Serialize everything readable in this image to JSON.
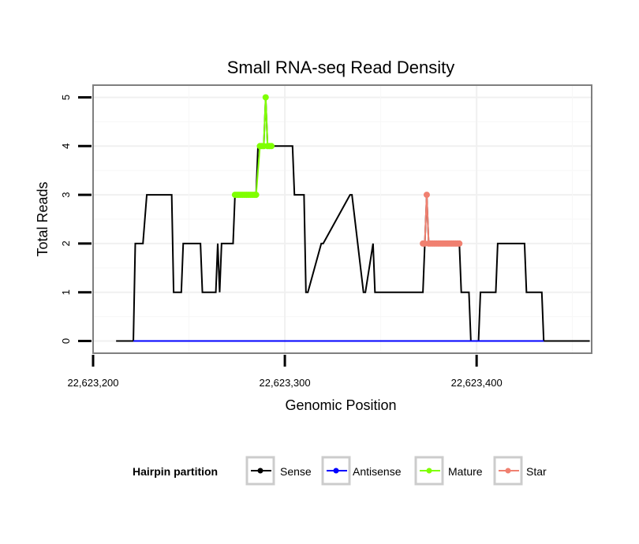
{
  "chart_data": {
    "type": "line",
    "title": "Small RNA-seq Read Density",
    "xlabel": "Genomic Position",
    "ylabel": "Total Reads",
    "xlim": [
      22623200,
      22623460
    ],
    "ylim": [
      -0.25,
      5.25
    ],
    "x_ticks": [
      22623200,
      22623300,
      22623400
    ],
    "x_tick_labels": [
      "22,623,200",
      "22,623,300",
      "22,623,400"
    ],
    "y_ticks": [
      0,
      1,
      2,
      3,
      4,
      5
    ],
    "y_tick_labels": [
      "0",
      "1",
      "2",
      "3",
      "4",
      "5"
    ],
    "grid": true,
    "legend": {
      "title": "Hairpin partition",
      "position": "bottom",
      "entries": [
        {
          "label": "Sense",
          "color": "#000000"
        },
        {
          "label": "Antisense",
          "color": "#0000ff"
        },
        {
          "label": "Mature",
          "color": "#7fff00"
        },
        {
          "label": "Star",
          "color": "#f08070"
        }
      ]
    },
    "series": [
      {
        "name": "Sense",
        "color": "#000000",
        "x": [
          22623212,
          22623221,
          22623222,
          22623226,
          22623228,
          22623241,
          22623242,
          22623246,
          22623247,
          22623256,
          22623257,
          22623264,
          22623265,
          22623266,
          22623267,
          22623273,
          22623274,
          22623285,
          22623286,
          22623289,
          22623290,
          22623291,
          22623293,
          22623294,
          22623304,
          22623305,
          22623310,
          22623311,
          22623312,
          22623319,
          22623320,
          22623334,
          22623335,
          22623341,
          22623342,
          22623346,
          22623347,
          22623351,
          22623352,
          22623372,
          22623373,
          22623374,
          22623375,
          22623391,
          22623392,
          22623396,
          22623397,
          22623401,
          22623402,
          22623405,
          22623406,
          22623410,
          22623411,
          22623425,
          22623426,
          22623434,
          22623435,
          22623459
        ],
        "values": [
          0,
          0,
          2,
          2,
          3,
          3,
          1,
          1,
          2,
          2,
          1,
          1,
          2,
          1,
          2,
          2,
          3,
          3,
          4,
          4,
          5,
          4,
          4,
          4,
          4,
          3,
          3,
          1,
          1,
          2,
          2,
          3,
          3,
          1,
          1,
          2,
          1,
          1,
          1,
          1,
          2,
          3,
          2,
          2,
          1,
          1,
          0,
          0,
          1,
          1,
          1,
          1,
          2,
          2,
          1,
          1,
          0,
          0
        ]
      },
      {
        "name": "Antisense",
        "color": "#0000ff",
        "x": [
          22623221,
          22623435
        ],
        "values": [
          0,
          0
        ]
      },
      {
        "name": "Mature",
        "color": "#7fff00",
        "x": [
          22623274,
          22623275,
          22623276,
          22623277,
          22623278,
          22623279,
          22623280,
          22623281,
          22623282,
          22623283,
          22623284,
          22623285,
          22623287,
          22623288,
          22623289,
          22623290,
          22623291,
          22623292,
          22623293
        ],
        "values": [
          3,
          3,
          3,
          3,
          3,
          3,
          3,
          3,
          3,
          3,
          3,
          3,
          4,
          4,
          4,
          5,
          4,
          4,
          4
        ]
      },
      {
        "name": "Star",
        "color": "#f08070",
        "x": [
          22623372,
          22623373,
          22623374,
          22623375,
          22623376,
          22623377,
          22623378,
          22623379,
          22623380,
          22623381,
          22623382,
          22623383,
          22623384,
          22623385,
          22623386,
          22623387,
          22623388,
          22623389,
          22623390,
          22623391
        ],
        "values": [
          2,
          2,
          3,
          2,
          2,
          2,
          2,
          2,
          2,
          2,
          2,
          2,
          2,
          2,
          2,
          2,
          2,
          2,
          2,
          2
        ]
      }
    ]
  }
}
